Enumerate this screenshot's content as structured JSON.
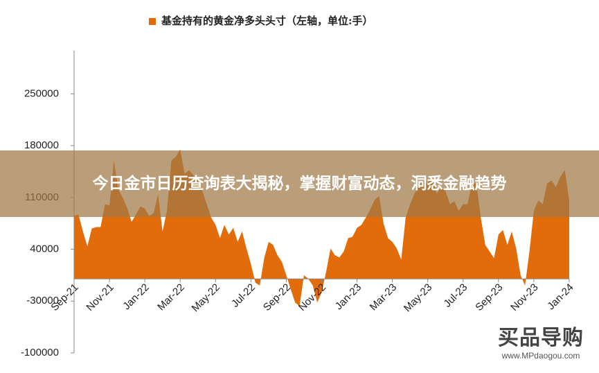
{
  "chart_data": {
    "type": "area",
    "categories": [
      "Sep-21",
      null,
      null,
      null,
      null,
      null,
      null,
      null,
      "Nov-21",
      null,
      null,
      null,
      null,
      null,
      null,
      null,
      "Jan-22",
      null,
      null,
      null,
      null,
      null,
      null,
      null,
      "Mar-22",
      null,
      null,
      null,
      null,
      null,
      null,
      null,
      "May-22",
      null,
      null,
      null,
      null,
      null,
      null,
      null,
      "Jul-22",
      null,
      null,
      null,
      null,
      null,
      null,
      null,
      "Sep-22",
      null,
      null,
      null,
      null,
      null,
      null,
      null,
      "Nov-22",
      null,
      null,
      null,
      null,
      null,
      null,
      null,
      "Jan-23",
      null,
      null,
      null,
      null,
      null,
      null,
      null,
      "Mar-23",
      null,
      null,
      null,
      null,
      null,
      null,
      null,
      "May-23",
      null,
      null,
      null,
      null,
      null,
      null,
      null,
      "Jul-23",
      null,
      null,
      null,
      null,
      null,
      null,
      null,
      "Sep-23",
      null,
      null,
      null,
      null,
      null,
      null,
      null,
      "Nov-23",
      null,
      null,
      null,
      null,
      null,
      null,
      null,
      "Jan-24"
    ],
    "series": [
      {
        "name": "基金持有的黄金净多头头寸（左轴，单位:手）",
        "color": "#e36c0a",
        "values": [
          85000,
          87000,
          64000,
          44000,
          68000,
          70000,
          70000,
          101000,
          99000,
          160000,
          121000,
          110000,
          96000,
          77000,
          87000,
          98000,
          95000,
          85000,
          89000,
          115000,
          64000,
          92000,
          160000,
          165000,
          175000,
          142000,
          147000,
          140000,
          133000,
          119000,
          101000,
          83000,
          73000,
          55000,
          73000,
          60000,
          69000,
          50000,
          64000,
          41000,
          20000,
          -5000,
          -9000,
          28000,
          50000,
          46000,
          32000,
          23000,
          5000,
          -14000,
          -32000,
          -37000,
          5000,
          0,
          -9000,
          -32000,
          -18000,
          9000,
          41000,
          32000,
          29000,
          37000,
          55000,
          57000,
          69000,
          73000,
          83000,
          94000,
          107000,
          112000,
          75000,
          55000,
          50000,
          41000,
          26000,
          83000,
          101000,
          115000,
          127000,
          133000,
          129000,
          138000,
          115000,
          124000,
          119000,
          101000,
          105000,
          92000,
          101000,
          101000,
          129000,
          129000,
          83000,
          46000,
          37000,
          28000,
          60000,
          66000,
          46000,
          64000,
          41000,
          5000,
          -9000,
          37000,
          92000,
          106000,
          101000,
          129000,
          133000,
          124000,
          138000,
          147000,
          106000
        ]
      }
    ],
    "ylim": [
      -100000,
      300000
    ],
    "yticks": [
      -100000,
      -30000,
      40000,
      110000,
      180000,
      250000
    ],
    "grid": false
  },
  "overlay": {
    "headline": "今日金市日历查询表大揭秘，掌握财富动态，洞悉金融趋势"
  },
  "watermark": {
    "logo": "买品导购",
    "url": "www.MPdaogou.com"
  }
}
